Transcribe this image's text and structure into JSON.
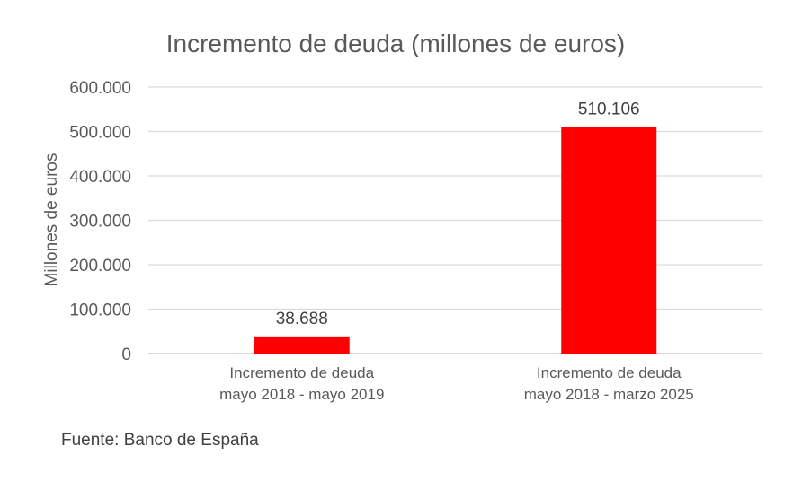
{
  "chart_data": {
    "type": "bar",
    "title": "Incremento de deuda (millones de euros)",
    "xlabel": "",
    "ylabel": "Millones de euros",
    "categories": [
      [
        "Incremento de deuda",
        "mayo 2018 - mayo 2019"
      ],
      [
        "Incremento de deuda",
        "mayo 2018 - marzo 2025"
      ]
    ],
    "values": [
      38688,
      510106
    ],
    "data_labels": [
      "38.688",
      "510.106"
    ],
    "ylim": [
      0,
      600000
    ],
    "yticks": [
      0,
      100000,
      200000,
      300000,
      400000,
      500000,
      600000
    ],
    "ytick_labels": [
      "0",
      "100.000",
      "200.000",
      "300.000",
      "400.000",
      "500.000",
      "600.000"
    ],
    "grid": true,
    "legend": "none",
    "bar_color": "#ff0000",
    "grid_color": "#d9d9d9"
  },
  "source_text": "Fuente: Banco de España"
}
